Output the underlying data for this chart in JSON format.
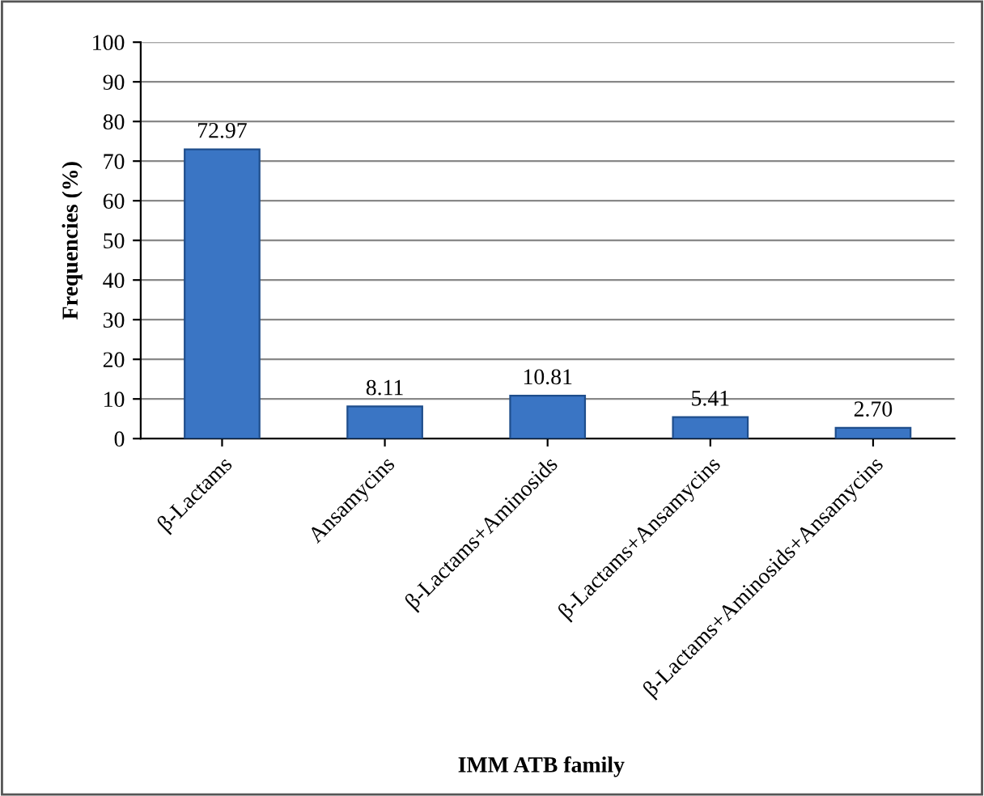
{
  "chart_data": {
    "type": "bar",
    "xlabel": "IMM ATB family",
    "ylabel": "Frequencies (%)",
    "categories": [
      "β-Lactams",
      "Ansamycins",
      "β-Lactams+Aminosids",
      "β-Lactams+Ansamycins",
      "β-Lactams+Aminosids+Ansamycins"
    ],
    "values": [
      72.97,
      8.11,
      10.81,
      5.41,
      2.7
    ],
    "value_labels": [
      "72.97",
      "8.11",
      "10.81",
      "5.41",
      "2.70"
    ],
    "color": "#3a75c4",
    "ylim": [
      0,
      100
    ],
    "yticks": [
      0,
      10,
      20,
      30,
      40,
      50,
      60,
      70,
      80,
      90,
      100
    ],
    "grid": "y",
    "legend": false
  }
}
